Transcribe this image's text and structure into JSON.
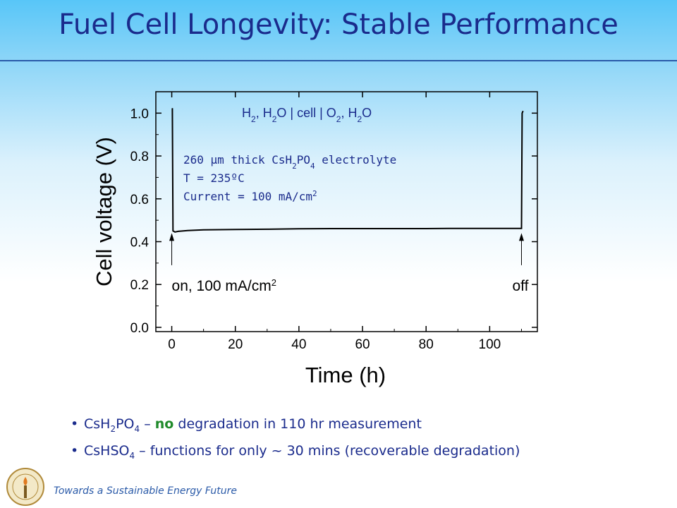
{
  "slide": {
    "title": "Fuel Cell Longevity: Stable Performance",
    "footer": "Towards a Sustainable Energy Future",
    "logo": "Caltech seal",
    "accent_color": "#1a2b8c"
  },
  "bullets": [
    {
      "pre": "CsH",
      "sub1": "2",
      "mid": "PO",
      "sub2": "4",
      "dash": " – ",
      "emph": "no",
      "post": " degradation in 110 hr measurement",
      "emph_color": "#1f8a2a"
    },
    {
      "pre": "CsHSO",
      "sub1": "4",
      "post": " – functions for only ~ 30 mins (recoverable degradation)"
    }
  ],
  "chart_data": {
    "type": "line",
    "xlabel": "Time (h)",
    "ylabel": "Cell voltage (V)",
    "xlim": [
      -5,
      115
    ],
    "ylim": [
      -0.02,
      1.1
    ],
    "x_ticks": [
      0,
      20,
      40,
      60,
      80,
      100
    ],
    "x_tick_labels": [
      "0",
      "20",
      "40",
      "60",
      "80",
      "100"
    ],
    "y_ticks": [
      0.0,
      0.2,
      0.4,
      0.6,
      0.8,
      1.0
    ],
    "y_tick_labels": [
      "0.0",
      "0.2",
      "0.4",
      "0.6",
      "0.8",
      "1.0"
    ],
    "grid": false,
    "legend": "none",
    "series": [
      {
        "color": "#000000",
        "x": [
          0,
          0.2,
          0.4,
          1,
          2,
          5,
          10,
          20,
          30,
          40,
          50,
          60,
          70,
          80,
          90,
          100,
          108,
          110,
          110.2,
          110.5
        ],
        "values": [
          1.02,
          1.02,
          0.45,
          0.445,
          0.448,
          0.452,
          0.455,
          0.457,
          0.458,
          0.46,
          0.461,
          0.461,
          0.461,
          0.461,
          0.462,
          0.462,
          0.462,
          0.462,
          1.0,
          1.01
        ]
      }
    ],
    "equation": {
      "parts": [
        {
          "t": "H"
        },
        {
          "t": "2",
          "sub": true
        },
        {
          "t": ", H"
        },
        {
          "t": "2",
          "sub": true
        },
        {
          "t": "O | cell | O"
        },
        {
          "t": "2",
          "sub": true
        },
        {
          "t": ", H"
        },
        {
          "t": "2",
          "sub": true
        },
        {
          "t": "O"
        }
      ]
    },
    "conditions": {
      "line1": {
        "pre": "260 ",
        "mu": "μ",
        "mid": "m thick CsH",
        "s1": "2",
        "mid2": "PO",
        "s2": "4",
        "post": " electrolyte"
      },
      "line2": "T = 235ºC",
      "line3": {
        "pre": "Current = 100 mA/cm",
        "sup": "2"
      }
    },
    "annotations": [
      {
        "text": "on, 100 mA/cm",
        "sup": "2",
        "x": 0,
        "arrow_tip_y": 0.44,
        "arrow_base_y": 0.29
      },
      {
        "text": "off",
        "x": 110,
        "arrow_tip_y": 0.44,
        "arrow_base_y": 0.29
      }
    ]
  }
}
